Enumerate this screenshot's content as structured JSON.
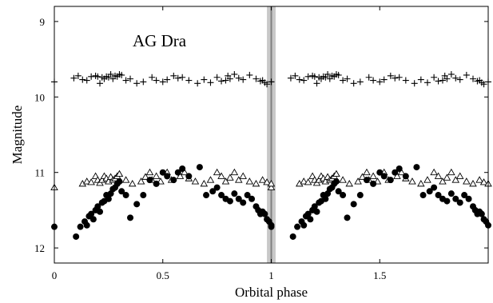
{
  "chart_data": {
    "type": "scatter",
    "title": "",
    "annotation": "AG Dra",
    "xlabel": "Orbital phase",
    "ylabel": "Magnitude",
    "xlim": [
      0,
      2
    ],
    "ylim": [
      12.2,
      8.8
    ],
    "y_inverted": true,
    "x_ticks": [
      0,
      0.5,
      1,
      1.5
    ],
    "x_tick_labels": [
      "0",
      "0.5",
      "1",
      "1.5"
    ],
    "y_ticks": [
      9,
      10,
      11,
      12
    ],
    "y_tick_labels": [
      "9",
      "10",
      "11",
      "12"
    ],
    "grid": false,
    "legend": "none",
    "band": {
      "x_from": 0.98,
      "x_to": 1.02,
      "center": 1.0,
      "color": "#c8c8c8"
    },
    "colors": {
      "marker": "#000000",
      "band": "#c8c8c8",
      "band_center": "#808080"
    },
    "series": [
      {
        "marker": "plus",
        "x": [
          0.0,
          0.09,
          0.11,
          0.13,
          0.15,
          0.17,
          0.19,
          0.2,
          0.21,
          0.22,
          0.23,
          0.24,
          0.25,
          0.26,
          0.27,
          0.28,
          0.29,
          0.3,
          0.31,
          0.33,
          0.35,
          0.38,
          0.41,
          0.45,
          0.47,
          0.5,
          0.52,
          0.55,
          0.57,
          0.59,
          0.62,
          0.66,
          0.69,
          0.72,
          0.75,
          0.77,
          0.79,
          0.8,
          0.81,
          0.83,
          0.85,
          0.87,
          0.9,
          0.93,
          0.95,
          0.96,
          0.97,
          0.98,
          1.0
        ],
        "y": [
          9.8,
          9.75,
          9.72,
          9.77,
          9.78,
          9.73,
          9.72,
          9.73,
          9.82,
          9.74,
          9.76,
          9.73,
          9.74,
          9.7,
          9.76,
          9.72,
          9.73,
          9.7,
          9.71,
          9.78,
          9.76,
          9.82,
          9.8,
          9.74,
          9.78,
          9.8,
          9.77,
          9.72,
          9.75,
          9.74,
          9.78,
          9.82,
          9.77,
          9.81,
          9.74,
          9.79,
          9.78,
          9.72,
          9.76,
          9.7,
          9.75,
          9.77,
          9.71,
          9.76,
          9.79,
          9.78,
          9.81,
          9.83,
          9.8
        ]
      },
      {
        "marker": "triangle",
        "x": [
          0.0,
          0.13,
          0.15,
          0.17,
          0.19,
          0.2,
          0.21,
          0.22,
          0.23,
          0.24,
          0.25,
          0.26,
          0.27,
          0.28,
          0.29,
          0.3,
          0.33,
          0.36,
          0.4,
          0.42,
          0.44,
          0.45,
          0.47,
          0.49,
          0.52,
          0.54,
          0.58,
          0.6,
          0.62,
          0.65,
          0.69,
          0.72,
          0.75,
          0.77,
          0.79,
          0.81,
          0.83,
          0.85,
          0.87,
          0.9,
          0.93,
          0.96,
          0.98,
          1.0
        ],
        "y": [
          11.2,
          11.15,
          11.12,
          11.13,
          11.05,
          11.1,
          11.14,
          11.1,
          11.05,
          11.08,
          11.12,
          11.06,
          11.1,
          11.08,
          11.05,
          11.02,
          11.1,
          11.15,
          11.12,
          11.06,
          11.0,
          11.1,
          11.05,
          11.12,
          11.0,
          11.1,
          11.05,
          11.0,
          11.08,
          11.12,
          11.15,
          11.1,
          11.0,
          11.05,
          11.12,
          11.07,
          11.0,
          11.1,
          11.05,
          11.12,
          11.15,
          11.1,
          11.13,
          11.15
        ]
      },
      {
        "marker": "circle",
        "x": [
          0.0,
          0.1,
          0.12,
          0.14,
          0.15,
          0.16,
          0.17,
          0.18,
          0.19,
          0.2,
          0.21,
          0.22,
          0.23,
          0.24,
          0.25,
          0.26,
          0.27,
          0.28,
          0.29,
          0.3,
          0.31,
          0.33,
          0.35,
          0.38,
          0.41,
          0.44,
          0.47,
          0.5,
          0.52,
          0.55,
          0.57,
          0.59,
          0.62,
          0.67,
          0.7,
          0.73,
          0.75,
          0.77,
          0.79,
          0.81,
          0.83,
          0.85,
          0.87,
          0.89,
          0.91,
          0.93,
          0.94,
          0.95,
          0.96,
          0.97,
          0.98,
          0.99,
          1.0
        ],
        "y": [
          11.72,
          11.85,
          11.72,
          11.65,
          11.7,
          11.58,
          11.55,
          11.62,
          11.5,
          11.45,
          11.52,
          11.4,
          11.38,
          11.3,
          11.35,
          11.28,
          11.22,
          11.2,
          11.15,
          11.12,
          11.25,
          11.3,
          11.6,
          11.42,
          11.3,
          11.1,
          11.15,
          11.0,
          11.05,
          11.1,
          11.0,
          10.95,
          11.05,
          10.93,
          11.3,
          11.25,
          11.2,
          11.3,
          11.35,
          11.38,
          11.28,
          11.35,
          11.4,
          11.3,
          11.35,
          11.45,
          11.5,
          11.55,
          11.52,
          11.55,
          11.62,
          11.65,
          11.7
        ]
      }
    ]
  }
}
